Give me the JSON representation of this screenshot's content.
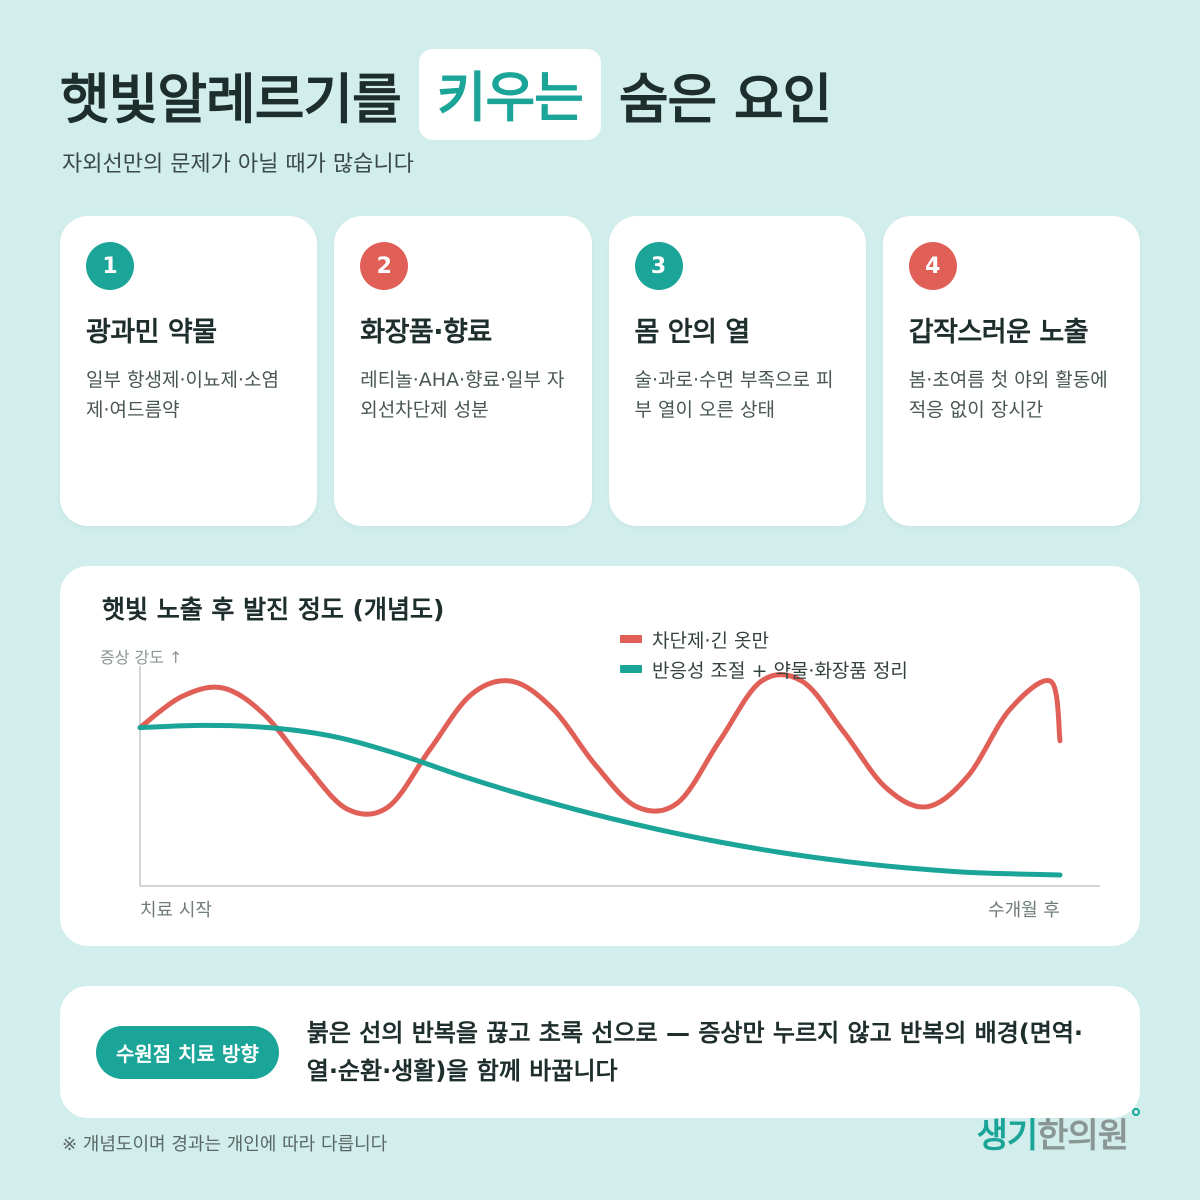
{
  "title": {
    "prefix": "햇빛알레르기를",
    "highlight": "키우는",
    "suffix": "숨은 요인"
  },
  "subtitle": "자외선만의 문제가 아닐 때가 많습니다",
  "cards": [
    {
      "number": "1",
      "title": "광과민 약물",
      "desc": "일부 항생제·이뇨제·소염제·여드름약"
    },
    {
      "number": "2",
      "title": "화장품·향료",
      "desc": "레티놀·AHA·향료·일부 자외선차단제 성분"
    },
    {
      "number": "3",
      "title": "몸 안의 열",
      "desc": "술·과로·수면 부족으로 피부 열이 오른 상태"
    },
    {
      "number": "4",
      "title": "갑작스러운 노출",
      "desc": "봄·초여름 첫 야외 활동에 적응 없이 장시간"
    }
  ],
  "colors": {
    "teal": "#1ba498",
    "red": "#e06058",
    "background": "#d1eeec"
  },
  "chart_data": {
    "type": "line",
    "title": "햇빛 노출 후 발진 정도 (개념도)",
    "ylabel": "증상 강도 ↑",
    "x_start_label": "치료 시작",
    "x_end_label": "수개월 후",
    "legend_placement": "top-right",
    "grid": false,
    "series": [
      {
        "name": "차단제·긴 옷만",
        "color": "#e06058",
        "x": [
          0,
          0.045,
          0.09,
          0.135,
          0.18,
          0.225,
          0.27,
          0.315,
          0.36,
          0.405,
          0.45,
          0.495,
          0.54,
          0.585,
          0.63,
          0.675,
          0.72,
          0.765,
          0.81,
          0.855,
          0.9,
          0.945,
          0.99,
          1.0
        ],
        "values": [
          0.72,
          0.86,
          0.9,
          0.78,
          0.55,
          0.35,
          0.36,
          0.62,
          0.87,
          0.93,
          0.8,
          0.55,
          0.36,
          0.38,
          0.66,
          0.93,
          0.93,
          0.7,
          0.45,
          0.36,
          0.5,
          0.8,
          0.93,
          0.66
        ]
      },
      {
        "name": "반응성 조절 + 약물·화장품 정리",
        "color": "#1ba498",
        "x": [
          0,
          0.07,
          0.14,
          0.21,
          0.28,
          0.35,
          0.42,
          0.49,
          0.56,
          0.63,
          0.7,
          0.77,
          0.84,
          0.91,
          1.0
        ],
        "values": [
          0.72,
          0.73,
          0.72,
          0.68,
          0.6,
          0.5,
          0.41,
          0.33,
          0.26,
          0.2,
          0.15,
          0.11,
          0.08,
          0.06,
          0.05
        ]
      }
    ]
  },
  "bottom": {
    "pill": "수원점 치료 방향",
    "text": "붉은 선의 반복을 끊고 초록 선으로 — 증상만 누르지 않고 반복의 배경(면역·열·순환·생활)을 함께 바꿉니다"
  },
  "footnote": "※ 개념도이며 경과는 개인에 따라 다릅니다",
  "logo": {
    "part1": "생기",
    "part2": "한의원"
  }
}
